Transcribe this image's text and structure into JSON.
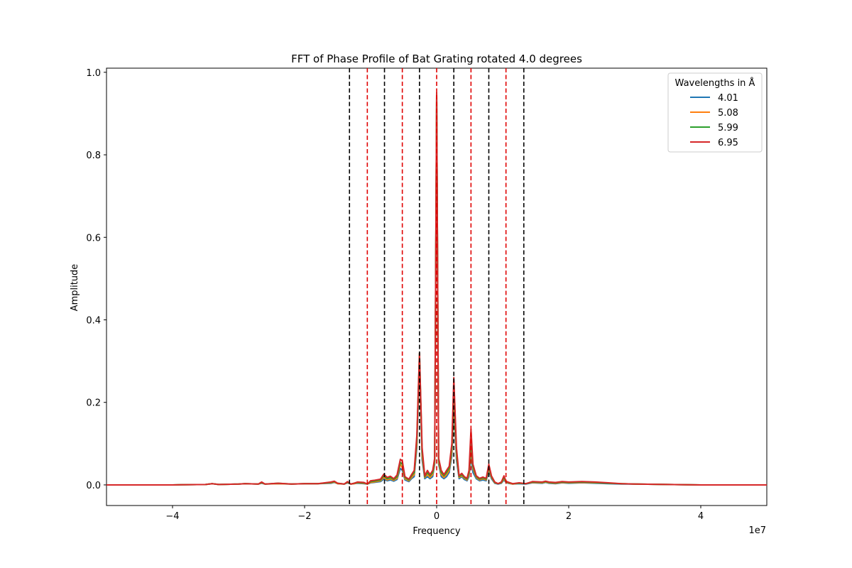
{
  "chart_data": {
    "type": "line",
    "title": "FFT of Phase Profile of Bat Grating rotated 4.0 degrees",
    "xlabel": "Frequency",
    "ylabel": "Amplitude",
    "x_offset_label": "1e7",
    "xlim": [
      -5.0,
      5.0
    ],
    "ylim": [
      -0.05,
      1.01
    ],
    "x_ticks": [
      -4,
      -2,
      0,
      2,
      4
    ],
    "x_tick_labels": [
      "−4",
      "−2",
      "0",
      "2",
      "4"
    ],
    "y_ticks": [
      0.0,
      0.2,
      0.4,
      0.6,
      0.8,
      1.0
    ],
    "y_tick_labels": [
      "0.0",
      "0.2",
      "0.4",
      "0.6",
      "0.8",
      "1.0"
    ],
    "grid": false,
    "legend": {
      "title": "Wavelengths in Å",
      "placement": "top-right"
    },
    "vlines_black": [
      -1.32,
      -0.79,
      -0.26,
      0.26,
      0.79,
      1.32
    ],
    "vlines_red": [
      -1.05,
      -0.52,
      0.0,
      0.52,
      1.05
    ],
    "x": [
      -5.0,
      -4.5,
      -4.0,
      -3.5,
      -3.4,
      -3.3,
      -3.0,
      -2.9,
      -2.7,
      -2.65,
      -2.6,
      -2.4,
      -2.2,
      -2.0,
      -1.8,
      -1.6,
      -1.55,
      -1.5,
      -1.4,
      -1.35,
      -1.3,
      -1.25,
      -1.2,
      -1.1,
      -1.05,
      -1.0,
      -0.95,
      -0.85,
      -0.8,
      -0.75,
      -0.7,
      -0.65,
      -0.6,
      -0.55,
      -0.52,
      -0.48,
      -0.42,
      -0.38,
      -0.34,
      -0.3,
      -0.26,
      -0.22,
      -0.18,
      -0.14,
      -0.1,
      -0.06,
      -0.03,
      0.0,
      0.03,
      0.07,
      0.11,
      0.15,
      0.19,
      0.23,
      0.26,
      0.3,
      0.34,
      0.38,
      0.42,
      0.46,
      0.49,
      0.52,
      0.55,
      0.6,
      0.65,
      0.7,
      0.75,
      0.79,
      0.83,
      0.88,
      0.93,
      0.98,
      1.02,
      1.05,
      1.08,
      1.15,
      1.25,
      1.35,
      1.45,
      1.6,
      1.65,
      1.7,
      1.8,
      1.9,
      2.0,
      2.2,
      2.4,
      2.6,
      2.8,
      3.0,
      3.5,
      4.0,
      4.5,
      5.0
    ],
    "series": [
      {
        "name": "4.01",
        "color": "#1f77b4",
        "values": [
          0.0,
          0.0,
          0.0,
          0.001,
          0.003,
          0.001,
          0.002,
          0.003,
          0.002,
          0.004,
          0.002,
          0.003,
          0.002,
          0.003,
          0.003,
          0.004,
          0.006,
          0.003,
          0.002,
          0.005,
          0.002,
          0.003,
          0.004,
          0.003,
          0.002,
          0.005,
          0.006,
          0.008,
          0.014,
          0.01,
          0.012,
          0.009,
          0.013,
          0.04,
          0.035,
          0.012,
          0.008,
          0.015,
          0.02,
          0.09,
          0.3,
          0.06,
          0.015,
          0.02,
          0.015,
          0.02,
          0.05,
          0.94,
          0.05,
          0.02,
          0.015,
          0.02,
          0.03,
          0.07,
          0.19,
          0.06,
          0.015,
          0.02,
          0.013,
          0.01,
          0.02,
          0.07,
          0.03,
          0.015,
          0.01,
          0.012,
          0.01,
          0.035,
          0.015,
          0.004,
          0.002,
          0.004,
          0.012,
          0.006,
          0.004,
          0.002,
          0.003,
          0.002,
          0.005,
          0.004,
          0.006,
          0.004,
          0.003,
          0.005,
          0.004,
          0.005,
          0.004,
          0.003,
          0.002,
          0.002,
          0.001,
          0.0,
          0.0,
          0.0
        ]
      },
      {
        "name": "5.08",
        "color": "#ff7f0e",
        "values": [
          0.0,
          0.0,
          0.0,
          0.001,
          0.003,
          0.001,
          0.002,
          0.003,
          0.002,
          0.005,
          0.002,
          0.003,
          0.002,
          0.003,
          0.003,
          0.005,
          0.007,
          0.003,
          0.002,
          0.006,
          0.002,
          0.003,
          0.005,
          0.004,
          0.002,
          0.006,
          0.007,
          0.01,
          0.018,
          0.012,
          0.015,
          0.011,
          0.016,
          0.05,
          0.042,
          0.015,
          0.01,
          0.018,
          0.025,
          0.1,
          0.31,
          0.07,
          0.018,
          0.025,
          0.018,
          0.025,
          0.055,
          0.95,
          0.055,
          0.025,
          0.018,
          0.025,
          0.035,
          0.08,
          0.21,
          0.07,
          0.018,
          0.022,
          0.016,
          0.012,
          0.025,
          0.09,
          0.04,
          0.018,
          0.012,
          0.015,
          0.012,
          0.04,
          0.018,
          0.005,
          0.003,
          0.005,
          0.015,
          0.007,
          0.005,
          0.002,
          0.004,
          0.003,
          0.006,
          0.005,
          0.007,
          0.005,
          0.004,
          0.006,
          0.005,
          0.006,
          0.005,
          0.004,
          0.003,
          0.002,
          0.001,
          0.0,
          0.0,
          0.0
        ]
      },
      {
        "name": "5.99",
        "color": "#2ca02c",
        "values": [
          0.0,
          0.0,
          0.0,
          0.001,
          0.003,
          0.001,
          0.002,
          0.003,
          0.002,
          0.006,
          0.002,
          0.004,
          0.002,
          0.003,
          0.003,
          0.006,
          0.008,
          0.004,
          0.002,
          0.007,
          0.002,
          0.004,
          0.006,
          0.005,
          0.002,
          0.008,
          0.009,
          0.012,
          0.022,
          0.015,
          0.018,
          0.013,
          0.02,
          0.055,
          0.05,
          0.018,
          0.012,
          0.022,
          0.03,
          0.11,
          0.32,
          0.08,
          0.02,
          0.03,
          0.022,
          0.03,
          0.06,
          0.95,
          0.06,
          0.03,
          0.022,
          0.03,
          0.04,
          0.09,
          0.23,
          0.08,
          0.02,
          0.025,
          0.018,
          0.014,
          0.03,
          0.11,
          0.045,
          0.02,
          0.014,
          0.017,
          0.014,
          0.045,
          0.02,
          0.006,
          0.003,
          0.006,
          0.018,
          0.008,
          0.006,
          0.003,
          0.004,
          0.003,
          0.007,
          0.006,
          0.008,
          0.006,
          0.005,
          0.007,
          0.006,
          0.007,
          0.006,
          0.004,
          0.003,
          0.002,
          0.001,
          0.0,
          0.0,
          0.0
        ]
      },
      {
        "name": "6.95",
        "color": "#d62728",
        "values": [
          0.0,
          0.0,
          0.0,
          0.001,
          0.003,
          0.001,
          0.002,
          0.003,
          0.002,
          0.007,
          0.002,
          0.004,
          0.002,
          0.003,
          0.003,
          0.007,
          0.009,
          0.004,
          0.002,
          0.008,
          0.002,
          0.004,
          0.007,
          0.006,
          0.002,
          0.01,
          0.011,
          0.014,
          0.026,
          0.018,
          0.021,
          0.015,
          0.024,
          0.062,
          0.058,
          0.02,
          0.014,
          0.025,
          0.035,
          0.12,
          0.32,
          0.09,
          0.022,
          0.035,
          0.025,
          0.035,
          0.065,
          0.95,
          0.065,
          0.035,
          0.025,
          0.035,
          0.045,
          0.1,
          0.26,
          0.09,
          0.022,
          0.028,
          0.02,
          0.016,
          0.035,
          0.135,
          0.05,
          0.022,
          0.016,
          0.019,
          0.016,
          0.05,
          0.022,
          0.007,
          0.003,
          0.007,
          0.022,
          0.009,
          0.007,
          0.003,
          0.005,
          0.003,
          0.008,
          0.007,
          0.009,
          0.007,
          0.006,
          0.008,
          0.007,
          0.008,
          0.007,
          0.005,
          0.003,
          0.002,
          0.001,
          0.0,
          0.0,
          0.0
        ]
      }
    ]
  }
}
